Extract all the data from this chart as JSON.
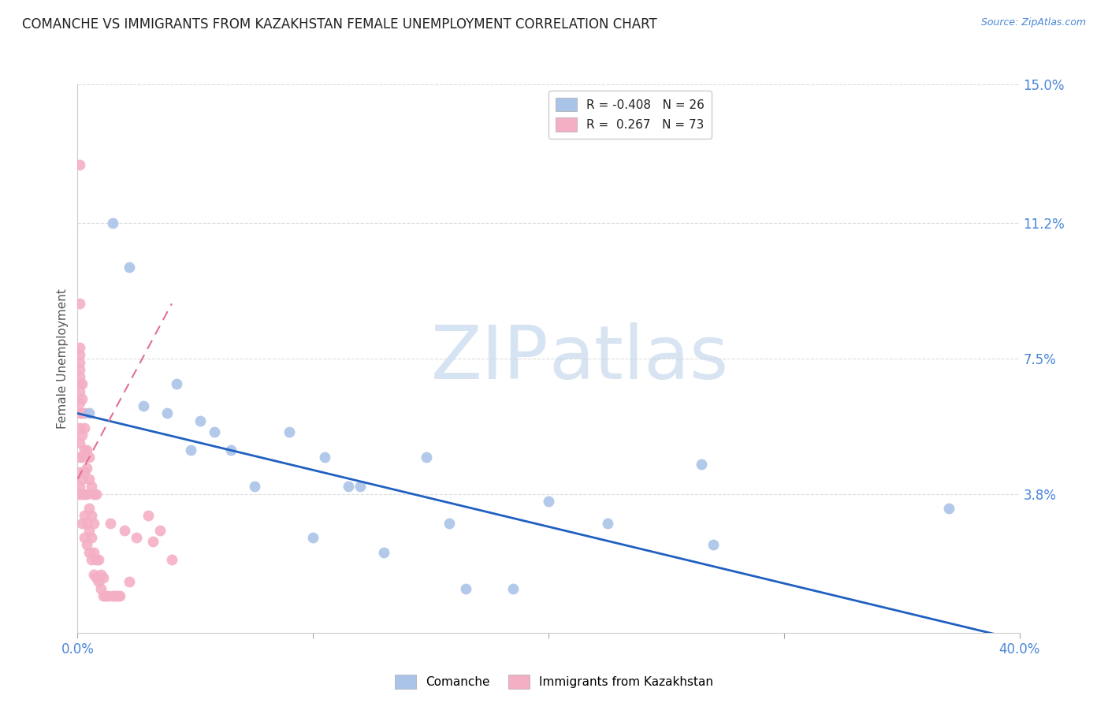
{
  "title": "COMANCHE VS IMMIGRANTS FROM KAZAKHSTAN FEMALE UNEMPLOYMENT CORRELATION CHART",
  "source": "Source: ZipAtlas.com",
  "ylabel_right_ticks": [
    "15.0%",
    "11.2%",
    "7.5%",
    "3.8%"
  ],
  "ylabel_right_values": [
    0.15,
    0.112,
    0.075,
    0.038
  ],
  "ylabel_label": "Female Unemployment",
  "xlim": [
    0.0,
    0.4
  ],
  "ylim": [
    0.0,
    0.15
  ],
  "x_ticks": [
    0.0,
    0.1,
    0.2,
    0.3,
    0.4
  ],
  "x_tick_labels": [
    "0.0%",
    "",
    "",
    "",
    "40.0%"
  ],
  "watermark_zip": "ZIP",
  "watermark_atlas": "atlas",
  "legend_series": [
    "Comanche",
    "Immigrants from Kazakhstan"
  ],
  "comanche_color": "#aac4e8",
  "comanche_line_color": "#2060c0",
  "kazakhstan_color": "#f4afc4",
  "kazakhstan_line_color": "#e07090",
  "comanche_x": [
    0.005,
    0.015,
    0.022,
    0.028,
    0.038,
    0.042,
    0.048,
    0.052,
    0.058,
    0.065,
    0.075,
    0.09,
    0.1,
    0.105,
    0.115,
    0.12,
    0.13,
    0.148,
    0.158,
    0.165,
    0.185,
    0.2,
    0.225,
    0.265,
    0.27,
    0.37
  ],
  "comanche_y": [
    0.06,
    0.112,
    0.1,
    0.062,
    0.06,
    0.068,
    0.05,
    0.058,
    0.055,
    0.05,
    0.04,
    0.055,
    0.026,
    0.048,
    0.04,
    0.04,
    0.022,
    0.048,
    0.03,
    0.012,
    0.012,
    0.036,
    0.03,
    0.046,
    0.024,
    0.034
  ],
  "kazakhstan_x": [
    0.001,
    0.001,
    0.001,
    0.001,
    0.001,
    0.001,
    0.001,
    0.001,
    0.001,
    0.001,
    0.001,
    0.001,
    0.001,
    0.001,
    0.001,
    0.001,
    0.001,
    0.002,
    0.002,
    0.002,
    0.002,
    0.002,
    0.002,
    0.002,
    0.002,
    0.003,
    0.003,
    0.003,
    0.003,
    0.003,
    0.003,
    0.003,
    0.004,
    0.004,
    0.004,
    0.004,
    0.004,
    0.005,
    0.005,
    0.005,
    0.005,
    0.005,
    0.006,
    0.006,
    0.006,
    0.006,
    0.007,
    0.007,
    0.007,
    0.007,
    0.008,
    0.008,
    0.008,
    0.009,
    0.009,
    0.01,
    0.01,
    0.011,
    0.011,
    0.012,
    0.013,
    0.014,
    0.015,
    0.016,
    0.017,
    0.018,
    0.02,
    0.022,
    0.025,
    0.03,
    0.032,
    0.035,
    0.04
  ],
  "kazakhstan_y": [
    0.038,
    0.04,
    0.044,
    0.048,
    0.052,
    0.056,
    0.06,
    0.063,
    0.066,
    0.068,
    0.07,
    0.072,
    0.074,
    0.076,
    0.078,
    0.128,
    0.09,
    0.03,
    0.038,
    0.042,
    0.048,
    0.054,
    0.06,
    0.064,
    0.068,
    0.026,
    0.032,
    0.038,
    0.044,
    0.05,
    0.056,
    0.06,
    0.024,
    0.03,
    0.038,
    0.045,
    0.05,
    0.022,
    0.028,
    0.034,
    0.042,
    0.048,
    0.02,
    0.026,
    0.032,
    0.04,
    0.016,
    0.022,
    0.03,
    0.038,
    0.015,
    0.02,
    0.038,
    0.014,
    0.02,
    0.012,
    0.016,
    0.01,
    0.015,
    0.01,
    0.01,
    0.03,
    0.01,
    0.01,
    0.01,
    0.01,
    0.028,
    0.014,
    0.026,
    0.032,
    0.025,
    0.028,
    0.02
  ],
  "comanche_trend_x": [
    0.0,
    0.4
  ],
  "comanche_trend_y": [
    0.06,
    -0.002
  ],
  "kazakhstan_trend_x": [
    0.0,
    0.04
  ],
  "kazakhstan_trend_y": [
    0.042,
    0.09
  ]
}
